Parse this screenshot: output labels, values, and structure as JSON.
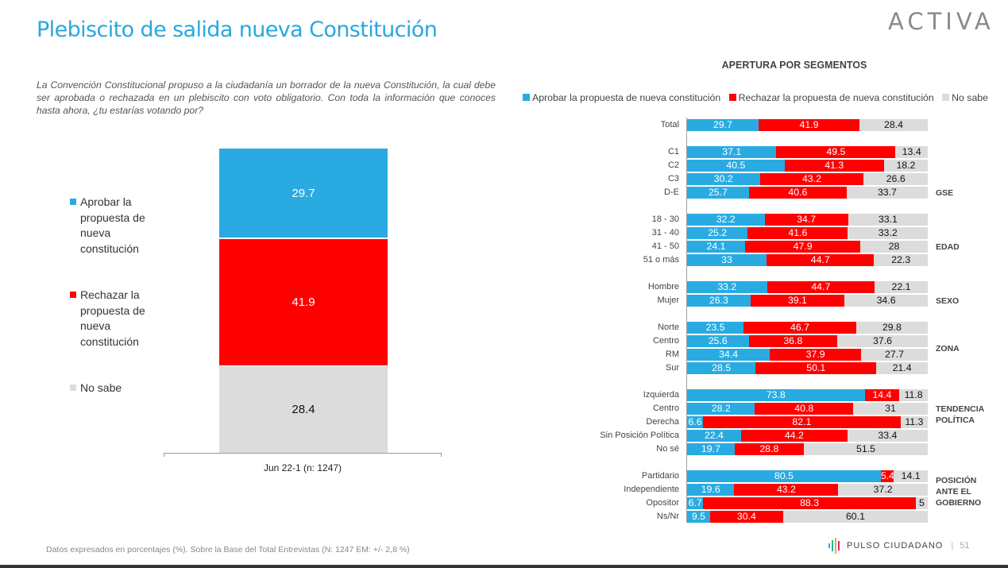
{
  "header": {
    "title": "Plebiscito de salida nueva Constitución",
    "brand": "ACTIVA"
  },
  "question": "La Convención Constitucional propuso a la ciudadanía un borrador de la nueva Constitución, la cual debe ser aprobada o rechazada en un plebiscito con voto obligatorio. Con toda la información que conoces hasta ahora, ¿tu estarías votando por?",
  "colors": {
    "aprobar": "#29abe2",
    "rechazar": "#ff0000",
    "no_sabe": "#dcdcdc",
    "title": "#29a8e0"
  },
  "footer": {
    "note": "Datos expresados en porcentajes (%). Sobre la Base del Total Entrevistas (N: 1247  EM: +/- 2,8 %)",
    "brand": "PULSO CIUDADANO",
    "separator": "|",
    "page": "51"
  },
  "chart_data": [
    {
      "type": "bar",
      "stacked": true,
      "orientation": "vertical",
      "title": "",
      "categories": [
        "Jun 22-1 (n: 1247)"
      ],
      "series": [
        {
          "name": "Aprobar la propuesta de nueva constitución",
          "values": [
            29.7
          ]
        },
        {
          "name": "Rechazar la propuesta de nueva constitución",
          "values": [
            41.9
          ]
        },
        {
          "name": "No sabe",
          "values": [
            28.4
          ]
        }
      ],
      "legend": "left",
      "ylim": [
        0,
        100
      ],
      "grid": false
    },
    {
      "type": "bar",
      "stacked": true,
      "orientation": "horizontal",
      "title": "APERTURA POR SEGMENTOS",
      "legend": "top",
      "legend_entries": [
        "Aprobar la propuesta de nueva constitución",
        "Rechazar la propuesta de nueva constitución",
        "No sabe"
      ],
      "xlim": [
        0,
        100
      ],
      "grid": false,
      "groups": [
        {
          "name": "",
          "rows": [
            {
              "label": "Total",
              "values": [
                29.7,
                41.9,
                28.4
              ]
            }
          ]
        },
        {
          "name": "GSE",
          "rows": [
            {
              "label": "C1",
              "values": [
                37.1,
                49.5,
                13.4
              ]
            },
            {
              "label": "C2",
              "values": [
                40.5,
                41.3,
                18.2
              ]
            },
            {
              "label": "C3",
              "values": [
                30.2,
                43.2,
                26.6
              ]
            },
            {
              "label": "D-E",
              "values": [
                25.7,
                40.6,
                33.7
              ]
            }
          ]
        },
        {
          "name": "EDAD",
          "rows": [
            {
              "label": "18 - 30",
              "values": [
                32.2,
                34.7,
                33.1
              ]
            },
            {
              "label": "31 - 40",
              "values": [
                25.2,
                41.6,
                33.2
              ]
            },
            {
              "label": "41 - 50",
              "values": [
                24.1,
                47.9,
                28
              ]
            },
            {
              "label": "51 o más",
              "values": [
                33,
                44.7,
                22.3
              ]
            }
          ]
        },
        {
          "name": "SEXO",
          "rows": [
            {
              "label": "Hombre",
              "values": [
                33.2,
                44.7,
                22.1
              ]
            },
            {
              "label": "Mujer",
              "values": [
                26.3,
                39.1,
                34.6
              ]
            }
          ]
        },
        {
          "name": "ZONA",
          "rows": [
            {
              "label": "Norte",
              "values": [
                23.5,
                46.7,
                29.8
              ]
            },
            {
              "label": "Centro",
              "values": [
                25.6,
                36.8,
                37.6
              ]
            },
            {
              "label": "RM",
              "values": [
                34.4,
                37.9,
                27.7
              ]
            },
            {
              "label": "Sur",
              "values": [
                28.5,
                50.1,
                21.4
              ]
            }
          ]
        },
        {
          "name": "TENDENCIA POLÍTICA",
          "rows": [
            {
              "label": "Izquierda",
              "values": [
                73.8,
                14.4,
                11.8
              ]
            },
            {
              "label": "Centro",
              "values": [
                28.2,
                40.8,
                31
              ]
            },
            {
              "label": "Derecha",
              "values": [
                6.6,
                82.1,
                11.3
              ]
            },
            {
              "label": "Sin Posición Política",
              "values": [
                22.4,
                44.2,
                33.4
              ]
            },
            {
              "label": "No sé",
              "values": [
                19.7,
                28.8,
                51.5
              ]
            }
          ]
        },
        {
          "name": "POSICIÓN ANTE EL GOBIERNO",
          "rows": [
            {
              "label": "Partidario",
              "values": [
                80.5,
                5.4,
                14.1
              ]
            },
            {
              "label": "Independiente",
              "values": [
                19.6,
                43.2,
                37.2
              ]
            },
            {
              "label": "Opositor",
              "values": [
                6.7,
                88.3,
                5
              ]
            },
            {
              "label": "Ns/Nr",
              "values": [
                9.5,
                30.4,
                60.1
              ]
            }
          ]
        }
      ]
    }
  ]
}
